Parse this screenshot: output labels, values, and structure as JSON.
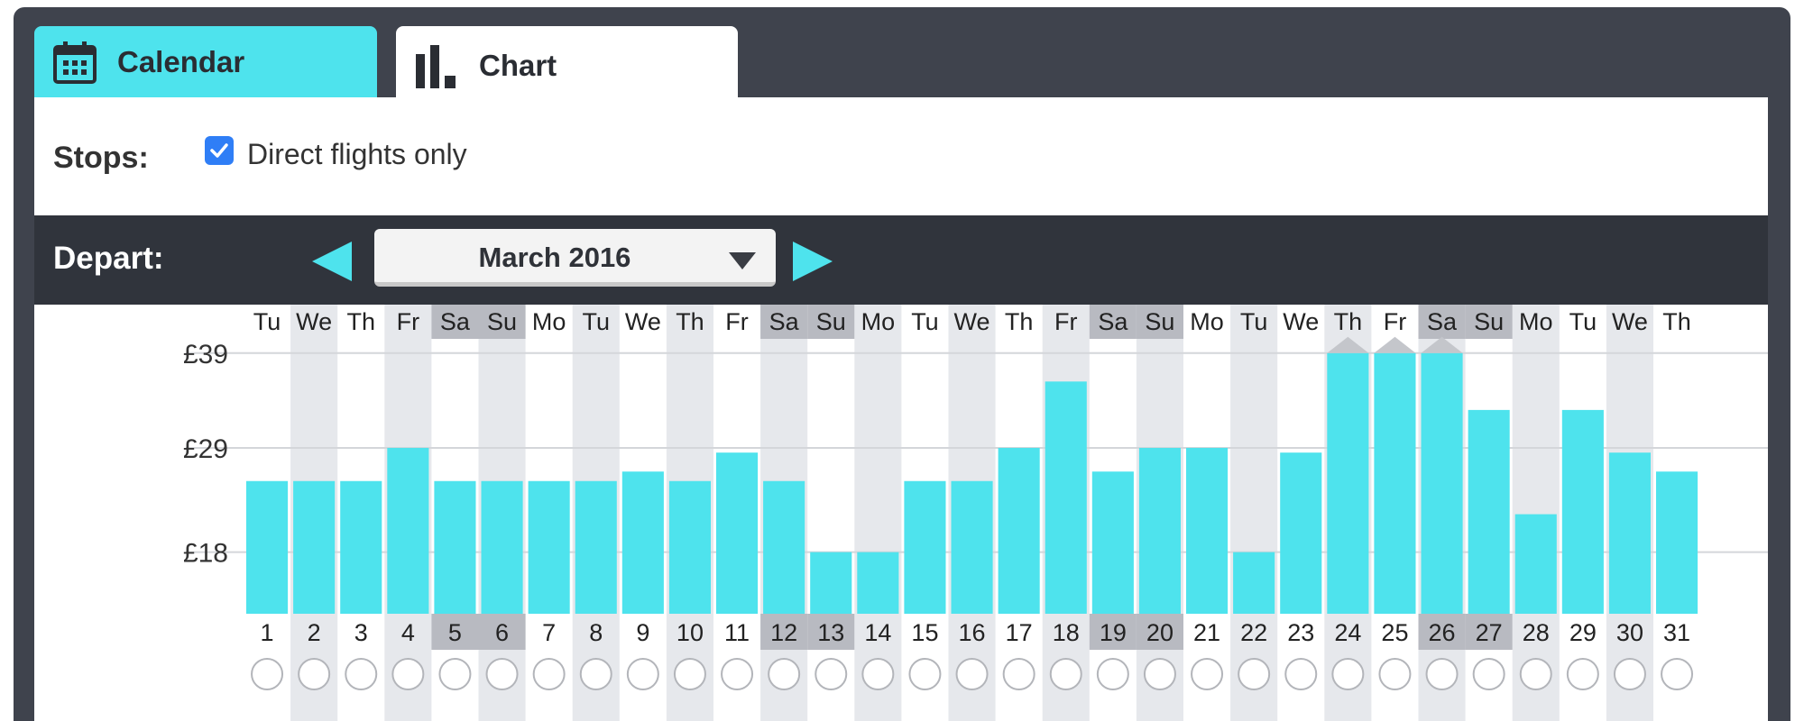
{
  "tabs": {
    "calendar": {
      "label": "Calendar",
      "icon": "calendar-icon"
    },
    "chart": {
      "label": "Chart",
      "icon": "bar-chart-icon"
    }
  },
  "filters": {
    "stops_label": "Stops:",
    "direct_only_label": "Direct flights only",
    "direct_only_checked": true
  },
  "depart": {
    "label": "Depart:",
    "month": "March 2016",
    "prev_icon": "arrow-left-icon",
    "next_icon": "arrow-right-icon",
    "dropdown_icon": "caret-down-icon"
  },
  "colors": {
    "accent": "#4ee3ed",
    "bar": "#4ee3ed",
    "weekend_column": "#e6e8ec",
    "weekend_header": "#b8bac1",
    "checkbox": "#2f7ef6"
  },
  "chart_data": {
    "type": "bar",
    "y_tick_labels": [
      "£39",
      "£29",
      "£18"
    ],
    "y_ticks": [
      39,
      29,
      18
    ],
    "ylim": [
      11.5,
      40.5
    ],
    "categories": [
      "1",
      "2",
      "3",
      "4",
      "5",
      "6",
      "7",
      "8",
      "9",
      "10",
      "11",
      "12",
      "13",
      "14",
      "15",
      "16",
      "17",
      "18",
      "19",
      "20",
      "21",
      "22",
      "23",
      "24",
      "25",
      "26",
      "27",
      "28",
      "29",
      "30",
      "31"
    ],
    "weekdays": [
      "Tu",
      "We",
      "Th",
      "Fr",
      "Sa",
      "Su",
      "Mo",
      "Tu",
      "We",
      "Th",
      "Fr",
      "Sa",
      "Su",
      "Mo",
      "Tu",
      "We",
      "Th",
      "Fr",
      "Sa",
      "Su",
      "Mo",
      "Tu",
      "We",
      "Th",
      "Fr",
      "Sa",
      "Su",
      "Mo",
      "Tu",
      "We",
      "Th"
    ],
    "values": [
      25.5,
      25.5,
      25.5,
      29,
      25.5,
      25.5,
      25.5,
      25.5,
      26.5,
      25.5,
      28.5,
      25.5,
      18,
      18,
      25.5,
      25.5,
      29,
      36,
      26.5,
      29,
      29,
      18,
      28.5,
      39,
      39,
      39,
      33,
      22,
      33,
      28.5,
      26.5
    ],
    "off_scale_days": [
      "24",
      "25",
      "26"
    ],
    "shaded_columns": [
      "2",
      "4",
      "6",
      "8",
      "10",
      "12",
      "14",
      "16",
      "18",
      "20",
      "22",
      "24",
      "26",
      "28",
      "30"
    ],
    "weekend_days": [
      "5",
      "6",
      "12",
      "13",
      "19",
      "20",
      "26",
      "27"
    ]
  }
}
